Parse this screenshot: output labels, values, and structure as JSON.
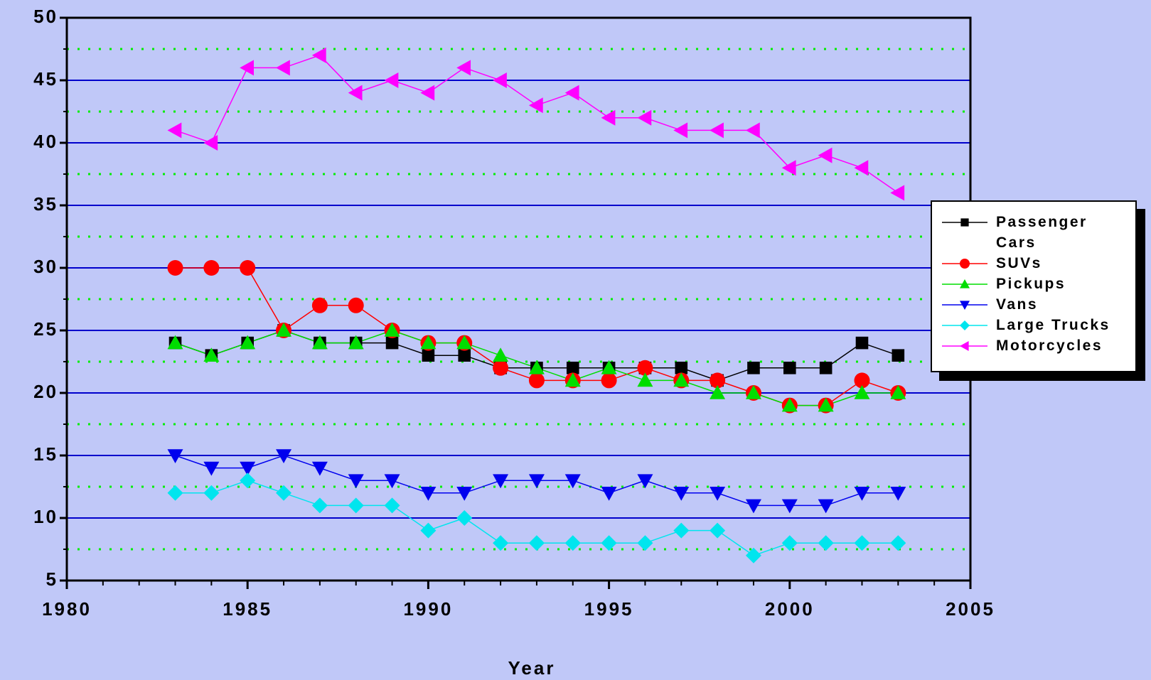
{
  "chart_data": {
    "type": "line",
    "x_label": "Year",
    "x": [
      1983,
      1984,
      1985,
      1986,
      1987,
      1988,
      1989,
      1990,
      1991,
      1992,
      1993,
      1994,
      1995,
      1996,
      1997,
      1998,
      1999,
      2000,
      2001,
      2002,
      2003
    ],
    "series": [
      {
        "name": "Passenger Cars",
        "color": "#000000",
        "marker": "square",
        "values": [
          24,
          23,
          24,
          25,
          24,
          24,
          24,
          23,
          23,
          22,
          22,
          22,
          22,
          22,
          22,
          21,
          22,
          22,
          22,
          24,
          23
        ]
      },
      {
        "name": "SUVs",
        "color": "#ff0000",
        "marker": "circle",
        "values": [
          30,
          30,
          30,
          25,
          27,
          27,
          25,
          24,
          24,
          22,
          21,
          21,
          21,
          22,
          21,
          21,
          20,
          19,
          19,
          21,
          20
        ]
      },
      {
        "name": "Pickups",
        "color": "#00dd00",
        "marker": "triangle-up",
        "values": [
          24,
          23,
          24,
          25,
          24,
          24,
          25,
          24,
          24,
          23,
          22,
          21,
          22,
          21,
          21,
          20,
          20,
          19,
          19,
          20,
          20
        ]
      },
      {
        "name": "Vans",
        "color": "#0000ee",
        "marker": "triangle-down",
        "values": [
          15,
          14,
          14,
          15,
          14,
          13,
          13,
          12,
          12,
          13,
          13,
          13,
          12,
          13,
          12,
          12,
          11,
          11,
          11,
          12,
          12
        ]
      },
      {
        "name": "Large Trucks",
        "color": "#00e5ee",
        "marker": "diamond",
        "values": [
          12,
          12,
          13,
          12,
          11,
          11,
          11,
          9,
          10,
          8,
          8,
          8,
          8,
          8,
          9,
          9,
          7,
          8,
          8,
          8,
          8
        ]
      },
      {
        "name": "Motorcycles",
        "color": "#ff00ff",
        "marker": "triangle-left",
        "values": [
          41,
          40,
          46,
          46,
          47,
          44,
          45,
          44,
          46,
          45,
          43,
          44,
          42,
          42,
          41,
          41,
          41,
          38,
          39,
          38,
          36
        ]
      }
    ],
    "xlim": [
      1980,
      2005
    ],
    "xticks": [
      1980,
      1985,
      1990,
      1995,
      2000,
      2005
    ],
    "minor_xticks": [
      1981,
      1982,
      1983,
      1984,
      1986,
      1987,
      1988,
      1989,
      1991,
      1992,
      1993,
      1994,
      1996,
      1997,
      1998,
      1999,
      2001,
      2002,
      2003,
      2004
    ],
    "ylim": [
      5,
      50
    ],
    "yticks": [
      5,
      10,
      15,
      20,
      25,
      30,
      35,
      40,
      45,
      50
    ],
    "minor_yticks": [
      7.5,
      12.5,
      17.5,
      22.5,
      27.5,
      32.5,
      37.5,
      42.5,
      47.5
    ],
    "grid": true,
    "grid_color": "#0000cc",
    "minor_grid_color": "#00ee00",
    "background": "#c0c8f8",
    "legend": "right"
  }
}
